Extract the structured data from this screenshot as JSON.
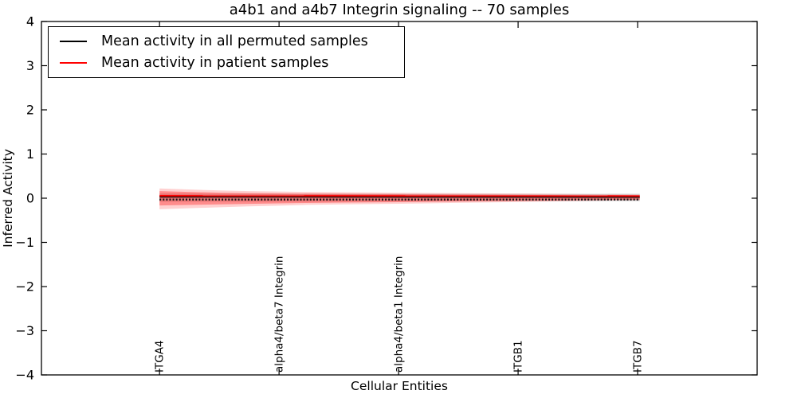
{
  "title": "a4b1 and a4b7 Integrin signaling -- 70 samples",
  "axis": {
    "xlabel": "Cellular Entities",
    "ylabel": "Inferred Activity"
  },
  "legend": {
    "position": "upper left",
    "items": [
      {
        "label": "Mean activity in all permuted samples",
        "color": "#000000",
        "style": "solid"
      },
      {
        "label": "Mean activity in patient samples",
        "color": "#ff0000",
        "style": "solid"
      }
    ]
  },
  "chart_data": {
    "type": "line",
    "title": "a4b1 and a4b7 Integrin signaling -- 70 samples",
    "xlabel": "Cellular Entities",
    "ylabel": "Inferred Activity",
    "ylim": [
      -4,
      4
    ],
    "grid": false,
    "legend_position": "upper left",
    "yticks": [
      {
        "value": 4,
        "label": "4"
      },
      {
        "value": 3,
        "label": "3"
      },
      {
        "value": 2,
        "label": "2"
      },
      {
        "value": 1,
        "label": "1"
      },
      {
        "value": 0,
        "label": "0"
      },
      {
        "value": -1,
        "label": "−1"
      },
      {
        "value": -2,
        "label": "−2"
      },
      {
        "value": -3,
        "label": "−3"
      },
      {
        "value": -4,
        "label": "−4"
      }
    ],
    "xticks": [
      {
        "pos": 0.165,
        "label": "ITGA4"
      },
      {
        "pos": 0.332,
        "label": "alpha4/beta7 Integrin"
      },
      {
        "pos": 0.499,
        "label": "alpha4/beta1 Integrin"
      },
      {
        "pos": 0.666,
        "label": "ITGB1"
      },
      {
        "pos": 0.833,
        "label": "ITGB7"
      }
    ],
    "bands": [
      {
        "name": "permuted-samples-spread",
        "color": "#999999",
        "opacity": 0.4,
        "x": [
          0.165,
          0.836
        ],
        "hi": [
          0.105,
          0.1
        ],
        "lo": [
          -0.08,
          -0.065
        ]
      },
      {
        "name": "patient-samples-spread-outer",
        "color": "#ff0000",
        "opacity": 0.18,
        "x": [
          0.165,
          0.21,
          0.25,
          0.29,
          0.332,
          0.37,
          0.42,
          0.46,
          0.499,
          0.54,
          0.58,
          0.62,
          0.666,
          0.71,
          0.75,
          0.79,
          0.836
        ],
        "hi": [
          0.22,
          0.195,
          0.175,
          0.16,
          0.15,
          0.142,
          0.135,
          0.13,
          0.125,
          0.12,
          0.115,
          0.11,
          0.105,
          0.1,
          0.093,
          0.086,
          0.08
        ],
        "lo": [
          -0.25,
          -0.225,
          -0.205,
          -0.185,
          -0.168,
          -0.152,
          -0.14,
          -0.132,
          -0.125,
          -0.116,
          -0.106,
          -0.096,
          -0.086,
          -0.075,
          -0.064,
          -0.054,
          -0.045
        ]
      },
      {
        "name": "patient-samples-spread-inner",
        "color": "#ff0000",
        "opacity": 0.33,
        "x": [
          0.165,
          0.21,
          0.25,
          0.29,
          0.332,
          0.37,
          0.42,
          0.46,
          0.499,
          0.54,
          0.58,
          0.62,
          0.666,
          0.71,
          0.75,
          0.79,
          0.836
        ],
        "hi": [
          0.16,
          0.14,
          0.124,
          0.114,
          0.107,
          0.101,
          0.096,
          0.092,
          0.089,
          0.086,
          0.082,
          0.079,
          0.075,
          0.071,
          0.066,
          0.061,
          0.056
        ],
        "lo": [
          -0.165,
          -0.152,
          -0.14,
          -0.128,
          -0.118,
          -0.108,
          -0.1,
          -0.094,
          -0.089,
          -0.082,
          -0.075,
          -0.068,
          -0.061,
          -0.053,
          -0.046,
          -0.039,
          -0.032
        ]
      }
    ],
    "series": [
      {
        "name": "entity-sample-markers",
        "color": "#151515",
        "style": "dotted",
        "width": 2.4,
        "x": [
          0.165,
          0.836
        ],
        "values": [
          -0.03,
          -0.03
        ]
      },
      {
        "name": "mean-activity-all-permuted-samples",
        "color": "#000000",
        "style": "solid",
        "width": 1.5,
        "x": [
          0.165,
          0.836
        ],
        "values": [
          0.03,
          0.025
        ]
      },
      {
        "name": "mean-activity-patient-samples",
        "color": "#ff0000",
        "style": "solid",
        "width": 1.8,
        "x": [
          0.165,
          0.836
        ],
        "values": [
          0.055,
          0.05
        ]
      }
    ]
  }
}
